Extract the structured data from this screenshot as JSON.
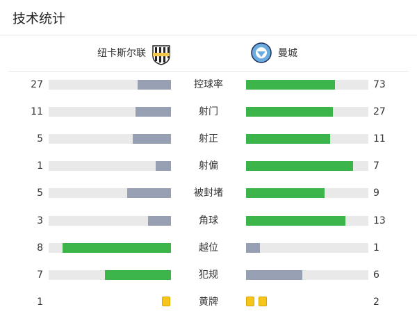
{
  "header": {
    "title": "技术统计"
  },
  "teams": {
    "home": "纽卡斯尔联",
    "away": "曼城"
  },
  "colors": {
    "more": "#3bb54a",
    "less": "#96a0b2",
    "track": "#e9e9e9",
    "card": "#f6c51b"
  },
  "stats": [
    {
      "label": "控球率",
      "home": 27,
      "away": 73,
      "type": "bar"
    },
    {
      "label": "射门",
      "home": 11,
      "away": 27,
      "type": "bar"
    },
    {
      "label": "射正",
      "home": 5,
      "away": 11,
      "type": "bar"
    },
    {
      "label": "射偏",
      "home": 1,
      "away": 7,
      "type": "bar"
    },
    {
      "label": "被封堵",
      "home": 5,
      "away": 9,
      "type": "bar"
    },
    {
      "label": "角球",
      "home": 3,
      "away": 13,
      "type": "bar"
    },
    {
      "label": "越位",
      "home": 8,
      "away": 1,
      "type": "bar"
    },
    {
      "label": "犯规",
      "home": 7,
      "away": 6,
      "type": "bar"
    },
    {
      "label": "黄牌",
      "home": 1,
      "away": 2,
      "type": "cards"
    }
  ]
}
